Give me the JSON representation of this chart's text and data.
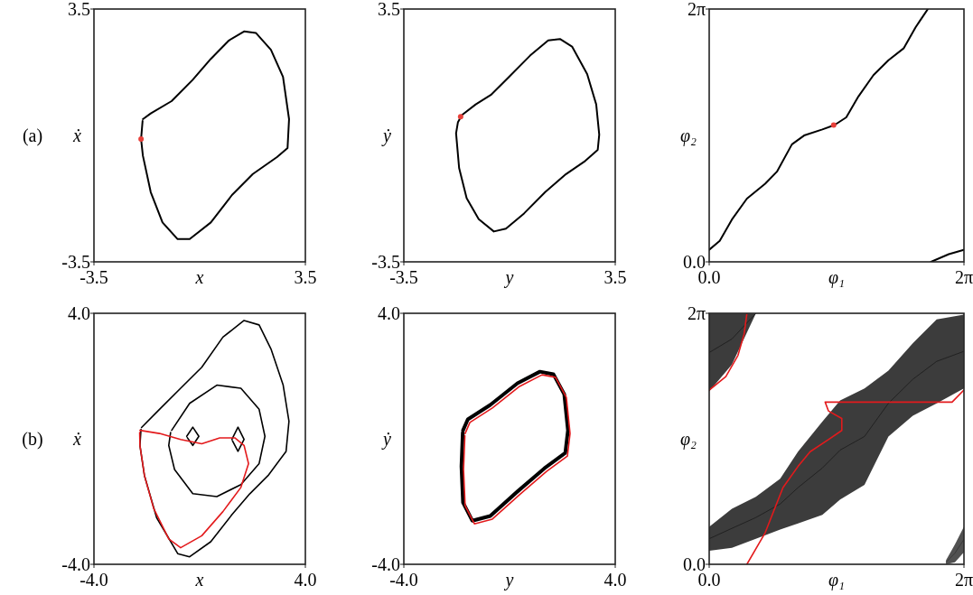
{
  "chart_data": [
    {
      "type": "line",
      "xlabel": "x",
      "ylabel": "ẋ",
      "annotations": [
        "(a)"
      ],
      "xlim": [
        -3.5,
        3.5
      ],
      "ylim": [
        -3.5,
        3.5
      ],
      "xticks": [
        {
          "value": -3.5,
          "label": "-3.5"
        },
        {
          "value": 3.5,
          "label": "3.5"
        }
      ],
      "yticks": [
        {
          "value": -3.5,
          "label": "-3.5"
        },
        {
          "value": 3.5,
          "label": "3.5"
        }
      ],
      "series": [
        {
          "color": "#000000",
          "x": [
            -1.88,
            -1.62,
            -0.93,
            -0.23,
            0.37,
            0.97,
            1.47,
            1.86,
            2.36,
            2.76,
            2.96,
            2.91,
            2.56,
            1.76,
            1.07,
            0.37,
            -0.33,
            -0.73,
            -1.23,
            -1.62,
            -1.88,
            -1.94,
            -1.89
          ],
          "values": [
            0.45,
            0.61,
            0.95,
            1.54,
            2.12,
            2.63,
            2.88,
            2.84,
            2.37,
            1.62,
            0.45,
            -0.35,
            -0.6,
            -1.07,
            -1.65,
            -2.41,
            -2.87,
            -2.87,
            -2.41,
            -1.57,
            -0.56,
            -0.1,
            0.4
          ]
        },
        {
          "type": "scatter",
          "color": "#e8403a",
          "x": [
            -1.94
          ],
          "values": [
            -0.1
          ]
        }
      ]
    },
    {
      "type": "line",
      "xlabel": "y",
      "ylabel": "ẏ",
      "xlim": [
        -3.5,
        3.5
      ],
      "ylim": [
        -3.5,
        3.5
      ],
      "xticks": [
        {
          "value": -3.5,
          "label": "-3.5"
        },
        {
          "value": 3.5,
          "label": "3.5"
        }
      ],
      "yticks": [
        {
          "value": -3.5,
          "label": "-3.5"
        },
        {
          "value": 3.5,
          "label": "3.5"
        }
      ],
      "series": [
        {
          "color": "#000000",
          "x": [
            -1.57,
            -1.12,
            -0.62,
            -0.02,
            0.68,
            1.28,
            1.67,
            2.07,
            2.57,
            2.87,
            2.97,
            2.92,
            2.47,
            1.87,
            1.18,
            0.48,
            -0.12,
            -0.52,
            -1.02,
            -1.42,
            -1.67,
            -1.77,
            -1.71,
            -1.6
          ],
          "values": [
            0.57,
            0.86,
            1.12,
            1.62,
            2.21,
            2.63,
            2.67,
            2.46,
            1.7,
            0.86,
            0.02,
            -0.4,
            -0.73,
            -1.07,
            -1.57,
            -2.16,
            -2.58,
            -2.66,
            -2.32,
            -1.74,
            -0.9,
            0.06,
            0.36,
            0.53
          ]
        },
        {
          "type": "scatter",
          "color": "#e8403a",
          "x": [
            -1.62
          ],
          "values": [
            0.52
          ]
        }
      ]
    },
    {
      "type": "line",
      "xlabel": "φ₁",
      "ylabel": "φ₂",
      "xlim": [
        0,
        6.283
      ],
      "ylim": [
        0,
        6.283
      ],
      "xticks": [
        {
          "value": 0,
          "label": "0.0"
        },
        {
          "value": 6.283,
          "label": "2π"
        }
      ],
      "yticks": [
        {
          "value": 0,
          "label": "0.0"
        },
        {
          "value": 6.283,
          "label": "2π"
        }
      ],
      "series": [
        {
          "color": "#000000",
          "x": [
            0,
            0.26,
            0.56,
            0.93,
            1.38,
            1.67,
            2.04,
            2.34,
            2.79,
            3.09,
            3.38,
            3.68,
            4.05,
            4.42,
            4.8,
            5.09,
            5.39
          ],
          "values": [
            0.3,
            0.52,
            1.05,
            1.57,
            1.94,
            2.24,
            2.92,
            3.14,
            3.29,
            3.4,
            3.59,
            4.11,
            4.64,
            5.01,
            5.31,
            5.83,
            6.28
          ]
        },
        {
          "color": "#000000",
          "x": [
            5.47,
            5.91,
            6.28
          ],
          "values": [
            0,
            0.19,
            0.3
          ]
        },
        {
          "type": "scatter",
          "color": "#e8403a",
          "x": [
            3.07
          ],
          "values": [
            3.4
          ]
        }
      ]
    },
    {
      "type": "line",
      "xlabel": "x",
      "ylabel": "ẋ",
      "annotations": [
        "(b)"
      ],
      "xlim": [
        -4,
        4
      ],
      "ylim": [
        -4,
        4
      ],
      "xticks": [
        {
          "value": -4,
          "label": "-4.0"
        },
        {
          "value": 4,
          "label": "4.0"
        }
      ],
      "yticks": [
        {
          "value": -4,
          "label": "-4.0"
        },
        {
          "value": 4,
          "label": "4.0"
        }
      ],
      "series": [
        {
          "color": "#000000",
          "x": [
            -2.2,
            -1.52,
            -0.72,
            0.08,
            0.88,
            1.68,
            2.25,
            2.7,
            3.16,
            3.38,
            3.27,
            2.59,
            1.9,
            1.22,
            0.42,
            -0.38,
            -0.83,
            -1.63,
            -2.09,
            -2.26,
            -2.22
          ],
          "values": [
            0.36,
            0.94,
            1.61,
            2.28,
            3.24,
            3.77,
            3.63,
            2.86,
            1.71,
            0.56,
            -0.4,
            -1.17,
            -1.75,
            -2.42,
            -3.28,
            -3.76,
            -3.66,
            -2.51,
            -1.17,
            -0.21,
            0.3
          ]
        },
        {
          "color": "#000000",
          "x": [
            -1.06,
            -0.38,
            0.65,
            1.56,
            2.25,
            2.47,
            2.25,
            1.56,
            0.65,
            -0.26,
            -0.95,
            -1.17,
            -1.1
          ],
          "values": [
            0.27,
            1.13,
            1.71,
            1.61,
            0.94,
            0.08,
            -0.79,
            -1.46,
            -1.84,
            -1.75,
            -0.98,
            -0.21,
            0.2
          ]
        },
        {
          "color": "#000000",
          "x": [
            -0.49,
            -0.26,
            -0.03,
            -0.26,
            -0.47
          ],
          "values": [
            0.08,
            0.37,
            0.08,
            -0.21,
            0.04
          ]
        },
        {
          "color": "#000000",
          "x": [
            1.22,
            1.45,
            1.68,
            1.45,
            1.24
          ],
          "values": [
            -0.02,
            0.37,
            -0.02,
            -0.4,
            -0.06
          ]
        },
        {
          "color": "#e31a1c",
          "x": [
            -2.26,
            -1.52,
            -0.72,
            0.08,
            0.76,
            1.33,
            1.68,
            1.85,
            1.56,
            0.88,
            0.08,
            -0.72,
            -1.17,
            -1.74,
            -2.09,
            -2.26,
            -2.27
          ],
          "values": [
            0.27,
            0.17,
            -0.02,
            -0.16,
            0.03,
            0.03,
            -0.21,
            -0.79,
            -1.55,
            -2.32,
            -3.09,
            -3.47,
            -3.19,
            -2.22,
            -1.17,
            -0.21,
            0.2
          ]
        }
      ]
    },
    {
      "type": "line",
      "xlabel": "y",
      "ylabel": "ẏ",
      "xlim": [
        -4,
        4
      ],
      "ylim": [
        -4,
        4
      ],
      "xticks": [
        {
          "value": -4,
          "label": "-4.0"
        },
        {
          "value": 4,
          "label": "4.0"
        }
      ],
      "yticks": [
        {
          "value": -4,
          "label": "-4.0"
        },
        {
          "value": 4,
          "label": "4.0"
        }
      ],
      "series": [
        {
          "color": "#000000",
          "x": [
            -1.76,
            -1.58,
            -0.73,
            0.3,
            1.15,
            1.66,
            2.07,
            2.21,
            2.11,
            1.32,
            0.3,
            -0.73,
            -1.41,
            -1.76,
            -1.82,
            -1.77
          ],
          "values": [
            0.27,
            0.62,
            1.08,
            1.77,
            2.14,
            2.06,
            1.42,
            0.27,
            -0.45,
            -0.94,
            -1.68,
            -2.46,
            -2.61,
            -2.03,
            -0.88,
            0.2
          ]
        },
        {
          "color": "#e31a1c",
          "x": [
            -1.68,
            -1.5,
            -0.65,
            0.38,
            1.23,
            1.74,
            2.15,
            2.29,
            2.19,
            1.4,
            0.38,
            -0.65,
            -1.33,
            -1.68,
            -1.74,
            -1.69
          ],
          "values": [
            0.17,
            0.52,
            0.98,
            1.67,
            2.04,
            1.96,
            1.32,
            0.17,
            -0.55,
            -1.04,
            -1.78,
            -2.56,
            -2.71,
            -2.13,
            -0.98,
            0.1
          ]
        }
      ]
    },
    {
      "type": "line",
      "xlabel": "φ₁",
      "ylabel": "φ₂",
      "xlim": [
        0,
        6.283
      ],
      "ylim": [
        0,
        6.283
      ],
      "xticks": [
        {
          "value": 0,
          "label": "0.0"
        },
        {
          "value": 6.283,
          "label": "2π"
        }
      ],
      "yticks": [
        {
          "value": 0,
          "label": "0.0"
        },
        {
          "value": 6.283,
          "label": "2π"
        }
      ],
      "series": [
        {
          "color": "#1a1a1a",
          "x": [
            0,
            0.56,
            1.15,
            1.75,
            2.19,
            2.79,
            3.23,
            3.83,
            4.42,
            5.02,
            5.61,
            6.28
          ],
          "values": [
            0.64,
            0.9,
            1.17,
            1.51,
            1.92,
            2.41,
            2.86,
            3.2,
            4.03,
            4.63,
            5.08,
            5.33
          ],
          "lower": [
            0.34,
            0.41,
            0.64,
            0.87,
            1.02,
            1.24,
            1.62,
            1.99,
            3.2,
            3.72,
            4.03,
            4.4
          ],
          "upper": [
            0.94,
            1.39,
            1.69,
            2.14,
            2.82,
            3.57,
            4.1,
            4.4,
            4.85,
            5.53,
            6.13,
            6.25
          ]
        },
        {
          "color": "#1a1a1a",
          "x": [
            0,
            0.56,
            1.15
          ],
          "values": [
            5.3,
            5.64,
            6.28
          ],
          "lower": [
            4.33,
            5.0,
            6.28
          ],
          "upper": [
            6.28,
            6.28,
            6.28
          ]
        },
        {
          "color": "#333333",
          "x": [
            5.84,
            6.06,
            6.28
          ],
          "values": [
            0.05,
            0.28,
            0.62
          ],
          "lower": [
            0,
            0.05,
            0.3
          ],
          "upper": [
            0.1,
            0.5,
            0.94
          ]
        },
        {
          "color": "#e31a1c",
          "x": [
            0.93,
            1.38,
            1.82,
            2.19,
            2.49,
            2.94,
            3.27,
            3.27,
            2.94,
            2.86,
            5.99,
            6.28
          ],
          "values": [
            0,
            0.79,
            1.92,
            2.45,
            2.82,
            3.12,
            3.35,
            3.65,
            3.84,
            4.06,
            4.06,
            4.36
          ]
        },
        {
          "color": "#e31a1c",
          "x": [
            0,
            0.41,
            0.71,
            0.86,
            0.93
          ],
          "values": [
            4.36,
            4.7,
            5.23,
            5.76,
            6.28
          ]
        }
      ]
    }
  ]
}
